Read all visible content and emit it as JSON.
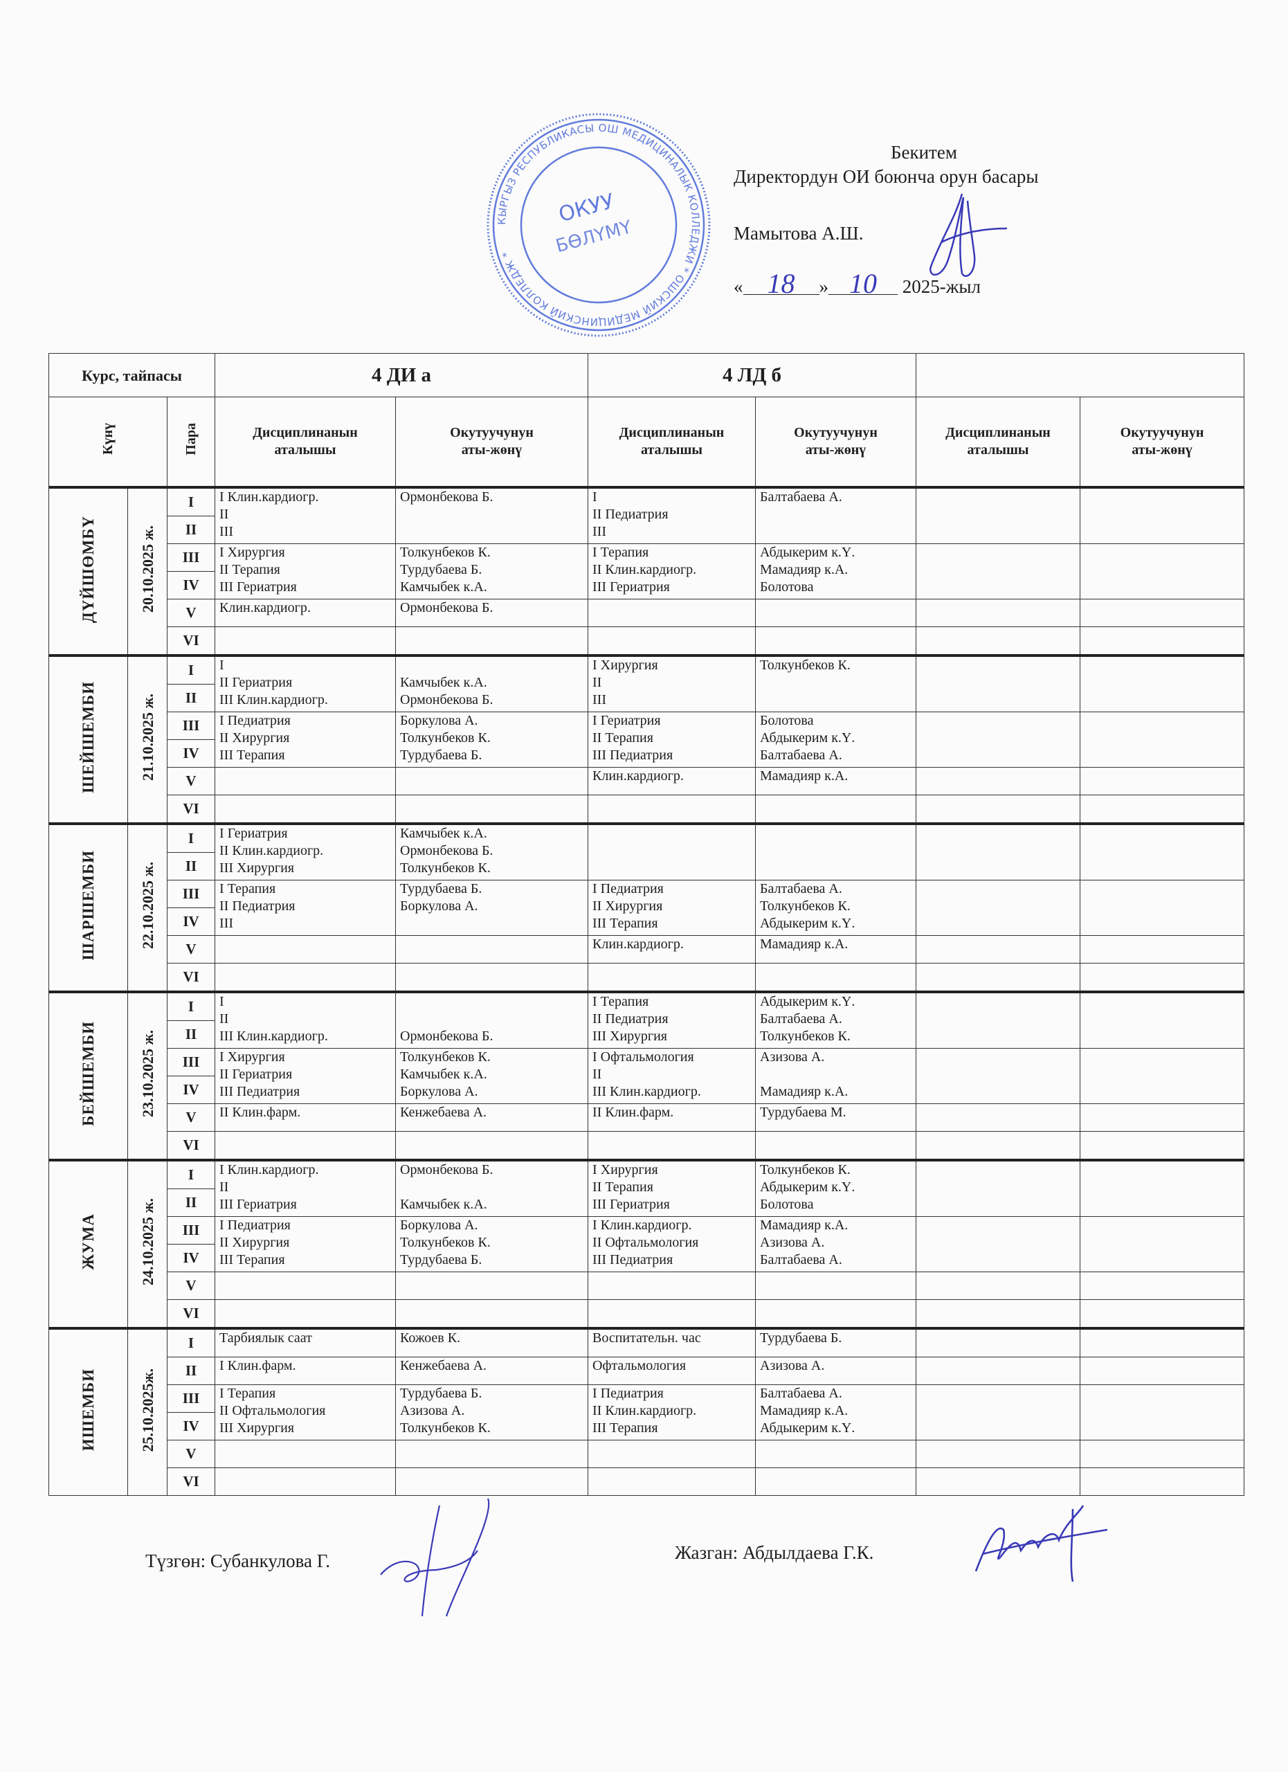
{
  "approval": {
    "title": "Бекитем",
    "position": "Директордун  ОИ боюнча орун басары",
    "name": "Мамытова А.Ш.",
    "date_day": "18",
    "date_month": "10",
    "year": "2025-жыл",
    "stamp_center_text": "ОКУУ БӨЛҮМҮ",
    "stamp_ring_text": "КЫРГЫЗ РЕСПУБЛИКАСЫ ОШ МЕДИЦИНАЛЫК КОЛЛЕДЖИ * ОШСКИЙ МЕДИЦИНСКИЙ КОЛЛЕДЖ *"
  },
  "table": {
    "course_label": "Курс, тайпасы",
    "groups": [
      "4 ДИ а",
      "4 ЛД б",
      ""
    ],
    "day_label": "Күнү",
    "pair_label": "Пара",
    "discipline_label": "Дисциплинанын\nаталышы",
    "teacher_label": "Окутуучунун\nаты-жөнү",
    "days": [
      {
        "name": "ДҮЙШӨМБҮ",
        "date": "20.10.2025  ж.",
        "blocks": [
          {
            "pairs": [
              "I",
              "II"
            ],
            "cells": [
              "I  Клин.кардиогр.\nII\nIII",
              "Ормонбекова Б.",
              "I\nII Педиатрия\nIII",
              "Балтабаева А.",
              "",
              ""
            ]
          },
          {
            "pairs": [
              "III",
              "IV"
            ],
            "cells": [
              "I  Хирургия\nII Терапия\nIII  Гериатрия",
              "Толкунбеков К.\nТурдубаева Б.\nКамчыбек к.А.",
              "I  Терапия\nII Клин.кардиогр.\nIII Гериатрия",
              "Абдыкерим к.Ү.\nМамадияр к.А.\nБолотова",
              "",
              ""
            ]
          },
          {
            "pairs": [
              "V"
            ],
            "cells": [
              "Клин.кардиогр.",
              "Ормонбекова Б.",
              "",
              "",
              "",
              ""
            ]
          },
          {
            "pairs": [
              "VI"
            ],
            "cells": [
              "",
              "",
              "",
              "",
              "",
              ""
            ]
          }
        ]
      },
      {
        "name": "ШЕЙШЕМБИ",
        "date": "21.10.2025  ж.",
        "blocks": [
          {
            "pairs": [
              "I",
              "II"
            ],
            "cells": [
              "I\nII Гериатрия\nIII Клин.кардиогр.",
              "\nКамчыбек к.А.\nОрмонбекова Б.",
              "I  Хирургия\nII\nIII",
              "Толкунбеков К.",
              "",
              ""
            ]
          },
          {
            "pairs": [
              "III",
              "IV"
            ],
            "cells": [
              "I  Педиатрия\nII Хирургия\nIII  Терапия",
              "Боркулова А.\nТолкунбеков К.\nТурдубаева Б.",
              "I  Гериатрия\nII Терапия\nIII Педиатрия",
              "Болотова\nАбдыкерим к.Ү.\nБалтабаева А.",
              "",
              ""
            ]
          },
          {
            "pairs": [
              "V"
            ],
            "cells": [
              "",
              "",
              "Клин.кардиогр.",
              "Мамадияр к.А.",
              "",
              ""
            ]
          },
          {
            "pairs": [
              "VI"
            ],
            "cells": [
              "",
              "",
              "",
              "",
              "",
              ""
            ]
          }
        ]
      },
      {
        "name": "ШАРШЕМБИ",
        "date": "22.10.2025  ж.",
        "blocks": [
          {
            "pairs": [
              "I",
              "II"
            ],
            "cells": [
              "I  Гериатрия\nII Клин.кардиогр.\nIII Хирургия",
              "Камчыбек к.А.\nОрмонбекова Б.\nТолкунбеков К.",
              "",
              "",
              "",
              ""
            ]
          },
          {
            "pairs": [
              "III",
              "IV"
            ],
            "cells": [
              "I  Терапия\nII Педиатрия\nIII",
              "Турдубаева Б.\nБоркулова А.",
              "I  Педиатрия\nII Хирургия\nIII Терапия",
              "Балтабаева А.\nТолкунбеков К.\nАбдыкерим к.Ү.",
              "",
              ""
            ]
          },
          {
            "pairs": [
              "V"
            ],
            "cells": [
              "",
              "",
              "Клин.кардиогр.",
              "Мамадияр к.А.",
              "",
              ""
            ]
          },
          {
            "pairs": [
              "VI"
            ],
            "cells": [
              "",
              "",
              "",
              "",
              "",
              ""
            ]
          }
        ]
      },
      {
        "name": "БЕЙШЕМБИ",
        "date": "23.10.2025 ж.",
        "blocks": [
          {
            "pairs": [
              "I",
              "II"
            ],
            "cells": [
              "I\nII\nIII Клин.кардиогр.",
              "\n\nОрмонбекова Б.",
              "I  Терапия\nII Педиатрия\nIII Хирургия",
              "Абдыкерим к.Ү.\nБалтабаева А.\nТолкунбеков К.",
              "",
              ""
            ]
          },
          {
            "pairs": [
              "III",
              "IV"
            ],
            "cells": [
              "I  Хирургия\nII Гериатрия\nIII Педиатрия",
              "Толкунбеков К.\nКамчыбек к.А.\nБоркулова А.",
              "I  Офтальмология\nII\nIII Клин.кардиогр.",
              "Азизова А.\n\nМамадияр к.А.",
              "",
              ""
            ]
          },
          {
            "pairs": [
              "V"
            ],
            "cells": [
              "II Клин.фарм.",
              "Кенжебаева А.",
              "II Клин.фарм.",
              "Турдубаева М.",
              "",
              ""
            ]
          },
          {
            "pairs": [
              "VI"
            ],
            "cells": [
              "",
              "",
              "",
              "",
              "",
              ""
            ]
          }
        ]
      },
      {
        "name": "ЖУМА",
        "date": "24.10.2025 ж.",
        "blocks": [
          {
            "pairs": [
              "I",
              "II"
            ],
            "cells": [
              "I   Клин.кардиогр.\nII\nIII Гериатрия",
              "Ормонбекова Б.\n\nКамчыбек к.А.",
              "I  Хирургия\nII Терапия\nIII Гериатрия",
              "Толкунбеков К.\nАбдыкерим к.Ү.\nБолотова",
              "",
              ""
            ]
          },
          {
            "pairs": [
              "III",
              "IV"
            ],
            "cells": [
              "I Педиатрия\nII Хирургия\nIII Терапия",
              "Боркулова А.\nТолкунбеков К.\nТурдубаева Б.",
              "I  Клин.кардиогр.\nII Офтальмология\nIII Педиатрия",
              "Мамадияр к.А.\nАзизова А.\nБалтабаева А.",
              "",
              ""
            ]
          },
          {
            "pairs": [
              "V"
            ],
            "cells": [
              "",
              "",
              "",
              "",
              "",
              ""
            ]
          },
          {
            "pairs": [
              "VI"
            ],
            "cells": [
              "",
              "",
              "",
              "",
              "",
              ""
            ]
          }
        ]
      },
      {
        "name": "ИШЕМБИ",
        "date": "25.10.2025ж.",
        "blocks": [
          {
            "pairs": [
              "I"
            ],
            "cells": [
              "Тарбиялык саат",
              "Кожоев К.",
              "Воспитательн. час",
              "Турдубаева Б.",
              "",
              ""
            ]
          },
          {
            "pairs": [
              "II"
            ],
            "cells": [
              " I Клин.фарм.",
              "Кенжебаева А.",
              "Офтальмология",
              "Азизова А.",
              "",
              ""
            ]
          },
          {
            "pairs": [
              "III",
              "IV"
            ],
            "cells": [
              "I Терапия\nII Офтальмология\nIII Хирургия",
              "Турдубаева Б.\nАзизова А.\nТолкунбеков К.",
              "I  Педиатрия\nII Клин.кардиогр.\nIII Терапия",
              "Балтабаева А.\nМамадияр к.А.\nАбдыкерим к.Ү.",
              "",
              ""
            ]
          },
          {
            "pairs": [
              "V"
            ],
            "cells": [
              "",
              "",
              "",
              "",
              "",
              ""
            ]
          },
          {
            "pairs": [
              "VI"
            ],
            "cells": [
              "",
              "",
              "",
              "",
              "",
              ""
            ]
          }
        ]
      }
    ]
  },
  "footer": {
    "compiled_by": "Түзгөн: Субанкулова Г.",
    "written_by": "Жазган:  Абдылдаева Г.К."
  },
  "colors": {
    "ink": "#1e1e1e",
    "stamp": "#3b5bd6",
    "signature": "#3a3ab8"
  }
}
